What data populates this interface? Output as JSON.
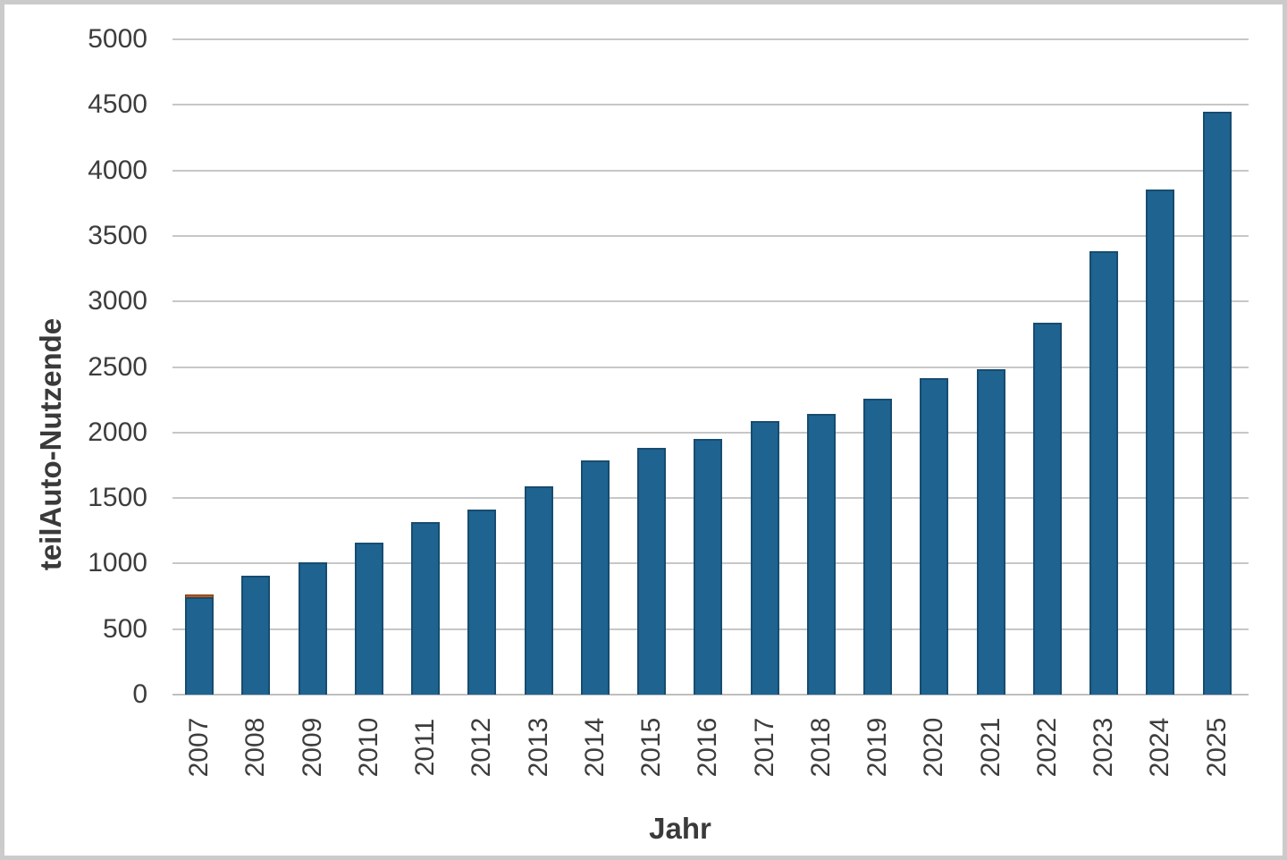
{
  "chart_data": {
    "type": "bar",
    "title": "",
    "xlabel": "Jahr",
    "ylabel": "teilAuto-Nutzende",
    "ylim": [
      0,
      5000
    ],
    "ytick_step": 500,
    "yticks": [
      "0",
      "500",
      "1000",
      "1500",
      "2000",
      "2500",
      "3000",
      "3500",
      "4000",
      "4500",
      "5000"
    ],
    "grid": true,
    "legend": false,
    "categories": [
      "2007",
      "2008",
      "2009",
      "2010",
      "2011",
      "2012",
      "2013",
      "2014",
      "2015",
      "2016",
      "2017",
      "2018",
      "2019",
      "2020",
      "2021",
      "2022",
      "2023",
      "2024",
      "2025"
    ],
    "series": [
      {
        "name": "teilAuto-Nutzende",
        "color": "#1f6390",
        "values": [
          742,
          910,
          1010,
          1160,
          1320,
          1410,
          1590,
          1790,
          1880,
          1950,
          2090,
          2140,
          2255,
          2415,
          2485,
          2835,
          3385,
          3855,
          4450
        ]
      },
      {
        "name": "orange-cap-segment",
        "color": "#c0571a",
        "values": [
          20,
          0,
          0,
          0,
          0,
          0,
          0,
          0,
          0,
          0,
          0,
          0,
          0,
          0,
          0,
          0,
          0,
          0,
          0
        ]
      }
    ]
  },
  "colors": {
    "bar_blue": "#1f6390",
    "bar_orange": "#c0571a",
    "gridline": "#c7c7c7",
    "frame_border": "#cbcbcb",
    "text": "#3d3d3d"
  }
}
